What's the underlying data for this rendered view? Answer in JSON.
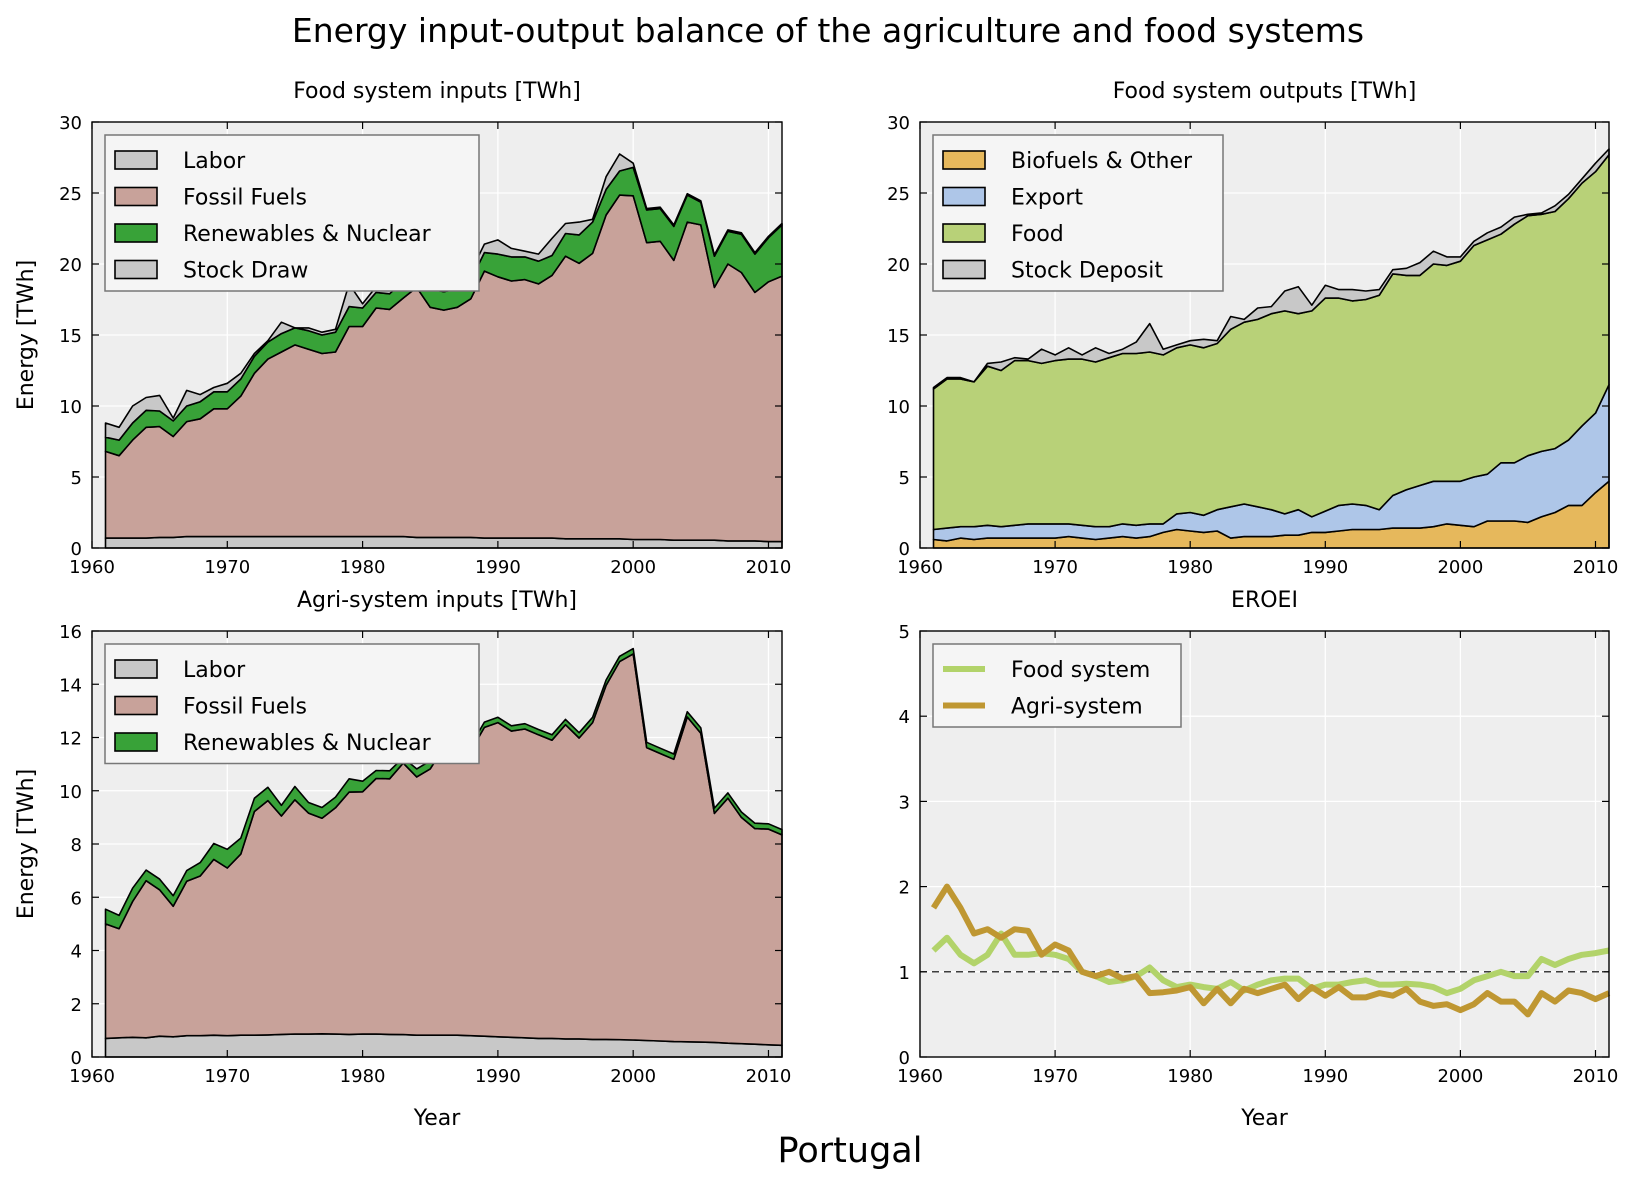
{
  "figure": {
    "title": "Energy input-output balance of the agriculture and food systems",
    "footer": "Portugal"
  },
  "chart_data": [
    {
      "id": "food_inputs",
      "type": "area",
      "stacked": true,
      "title": "Food system inputs [TWh]",
      "xlabel": "",
      "ylabel": "Energy [TWh]",
      "xlim": [
        1960,
        2011
      ],
      "ylim": [
        0,
        30
      ],
      "xticks": [
        1960,
        1970,
        1980,
        1990,
        2000,
        2010
      ],
      "yticks": [
        0,
        5,
        10,
        15,
        20,
        25,
        30
      ],
      "grid": true,
      "legend_position": "top-left",
      "x": [
        1961,
        1962,
        1963,
        1964,
        1965,
        1966,
        1967,
        1968,
        1969,
        1970,
        1971,
        1972,
        1973,
        1974,
        1975,
        1976,
        1977,
        1978,
        1979,
        1980,
        1981,
        1982,
        1983,
        1984,
        1985,
        1986,
        1987,
        1988,
        1989,
        1990,
        1991,
        1992,
        1993,
        1994,
        1995,
        1996,
        1997,
        1998,
        1999,
        2000,
        2001,
        2002,
        2003,
        2004,
        2005,
        2006,
        2007,
        2008,
        2009,
        2010,
        2011
      ],
      "series": [
        {
          "name": "Labor",
          "color": "#c8c8c8",
          "values": [
            0.7,
            0.7,
            0.7,
            0.7,
            0.75,
            0.75,
            0.8,
            0.8,
            0.8,
            0.8,
            0.8,
            0.8,
            0.8,
            0.8,
            0.8,
            0.8,
            0.8,
            0.8,
            0.8,
            0.8,
            0.8,
            0.8,
            0.8,
            0.75,
            0.75,
            0.75,
            0.75,
            0.75,
            0.7,
            0.7,
            0.7,
            0.7,
            0.7,
            0.7,
            0.65,
            0.65,
            0.65,
            0.65,
            0.65,
            0.6,
            0.6,
            0.6,
            0.55,
            0.55,
            0.55,
            0.55,
            0.5,
            0.5,
            0.5,
            0.45,
            0.45
          ]
        },
        {
          "name": "Fossil Fuels",
          "color": "#c8a29a",
          "values": [
            6.1,
            5.8,
            6.9,
            7.8,
            7.8,
            7.1,
            8.1,
            8.3,
            9.0,
            9.0,
            9.9,
            11.5,
            12.5,
            13.0,
            13.5,
            13.2,
            12.9,
            13.0,
            14.8,
            14.8,
            16.1,
            16.0,
            16.8,
            17.6,
            16.2,
            16.0,
            16.2,
            16.8,
            18.8,
            18.4,
            18.1,
            18.2,
            17.9,
            18.5,
            19.9,
            19.4,
            20.1,
            22.8,
            24.2,
            24.2,
            20.9,
            21.0,
            19.7,
            22.4,
            22.2,
            17.8,
            19.5,
            18.9,
            17.5,
            18.3,
            18.7
          ]
        },
        {
          "name": "Renewables & Nuclear",
          "color": "#38a238",
          "values": [
            1.0,
            1.1,
            1.2,
            1.2,
            1.1,
            1.1,
            1.1,
            1.2,
            1.2,
            1.2,
            1.2,
            1.2,
            1.2,
            1.3,
            1.2,
            1.3,
            1.3,
            1.4,
            1.4,
            1.3,
            1.1,
            1.1,
            1.2,
            1.6,
            1.3,
            1.3,
            1.3,
            1.3,
            1.3,
            1.6,
            1.7,
            1.6,
            1.6,
            1.4,
            1.6,
            2.0,
            2.2,
            1.8,
            1.7,
            2.0,
            2.3,
            2.3,
            2.4,
            1.9,
            1.6,
            2.2,
            2.3,
            2.7,
            2.7,
            3.1,
            3.6
          ]
        },
        {
          "name": "Stock Draw",
          "color": "#c8c8c8",
          "values": [
            1.0,
            0.9,
            1.2,
            0.9,
            1.1,
            0.2,
            1.1,
            0.5,
            0.3,
            0.6,
            0.4,
            0.2,
            0.1,
            0.8,
            0.0,
            0.2,
            0.2,
            0.2,
            1.6,
            0.3,
            0.4,
            1.0,
            0.1,
            1.4,
            0.3,
            0.3,
            0.6,
            0.6,
            0.6,
            1.0,
            0.6,
            0.4,
            0.5,
            1.2,
            0.7,
            0.9,
            0.2,
            0.9,
            1.2,
            0.3,
            0.1,
            0.1,
            0.1,
            0.1,
            0.1,
            0.1,
            0.1,
            0.1,
            0.1,
            0.1,
            0.1
          ]
        }
      ]
    },
    {
      "id": "food_outputs",
      "type": "area",
      "stacked": true,
      "title": "Food system outputs [TWh]",
      "xlabel": "",
      "ylabel": "",
      "xlim": [
        1960,
        2011
      ],
      "ylim": [
        0,
        30
      ],
      "xticks": [
        1960,
        1970,
        1980,
        1990,
        2000,
        2010
      ],
      "yticks": [
        0,
        5,
        10,
        15,
        20,
        25,
        30
      ],
      "grid": true,
      "legend_position": "top-left",
      "x": [
        1961,
        1962,
        1963,
        1964,
        1965,
        1966,
        1967,
        1968,
        1969,
        1970,
        1971,
        1972,
        1973,
        1974,
        1975,
        1976,
        1977,
        1978,
        1979,
        1980,
        1981,
        1982,
        1983,
        1984,
        1985,
        1986,
        1987,
        1988,
        1989,
        1990,
        1991,
        1992,
        1993,
        1994,
        1995,
        1996,
        1997,
        1998,
        1999,
        2000,
        2001,
        2002,
        2003,
        2004,
        2005,
        2006,
        2007,
        2008,
        2009,
        2010,
        2011
      ],
      "series": [
        {
          "name": "Biofuels & Other",
          "color": "#e6b85c",
          "values": [
            0.6,
            0.5,
            0.7,
            0.6,
            0.7,
            0.7,
            0.7,
            0.7,
            0.7,
            0.7,
            0.8,
            0.7,
            0.6,
            0.7,
            0.8,
            0.7,
            0.8,
            1.1,
            1.3,
            1.2,
            1.1,
            1.2,
            0.7,
            0.8,
            0.8,
            0.8,
            0.9,
            0.9,
            1.1,
            1.1,
            1.2,
            1.3,
            1.3,
            1.3,
            1.4,
            1.4,
            1.4,
            1.5,
            1.7,
            1.6,
            1.5,
            1.9,
            1.9,
            1.9,
            1.8,
            2.2,
            2.5,
            3.0,
            3.0,
            3.9,
            4.7
          ]
        },
        {
          "name": "Export",
          "color": "#aec6e8",
          "values": [
            0.7,
            0.9,
            0.8,
            0.9,
            0.9,
            0.8,
            0.9,
            1.0,
            1.0,
            1.0,
            0.9,
            0.9,
            0.9,
            0.8,
            0.9,
            0.9,
            0.9,
            0.6,
            1.1,
            1.3,
            1.2,
            1.5,
            2.2,
            2.3,
            2.1,
            1.9,
            1.5,
            1.8,
            1.1,
            1.5,
            1.8,
            1.8,
            1.7,
            1.4,
            2.3,
            2.7,
            3.0,
            3.2,
            3.0,
            3.1,
            3.5,
            3.3,
            4.1,
            4.1,
            4.7,
            4.6,
            4.5,
            4.6,
            5.6,
            5.6,
            6.8
          ]
        },
        {
          "name": "Food",
          "color": "#b8d178",
          "values": [
            9.9,
            10.5,
            10.4,
            10.2,
            11.2,
            11.0,
            11.6,
            11.5,
            11.3,
            11.5,
            11.6,
            11.7,
            11.6,
            11.9,
            12.0,
            12.1,
            12.1,
            11.9,
            11.7,
            11.8,
            11.8,
            11.7,
            12.5,
            12.8,
            13.2,
            13.8,
            14.3,
            13.8,
            14.5,
            15.0,
            14.6,
            14.3,
            14.5,
            15.1,
            15.6,
            15.1,
            14.8,
            15.3,
            15.2,
            15.5,
            16.3,
            16.5,
            16.1,
            16.8,
            16.9,
            16.7,
            16.7,
            17.0,
            17.1,
            17.0,
            16.2
          ]
        },
        {
          "name": "Stock Deposit",
          "color": "#c8c8c8",
          "values": [
            0.1,
            0.1,
            0.1,
            0.0,
            0.2,
            0.6,
            0.2,
            0.1,
            1.0,
            0.4,
            0.8,
            0.3,
            1.0,
            0.3,
            0.3,
            0.8,
            2.0,
            0.4,
            0.2,
            0.3,
            0.6,
            0.2,
            0.9,
            0.2,
            0.8,
            0.5,
            1.4,
            1.9,
            0.4,
            0.9,
            0.6,
            0.8,
            0.6,
            0.4,
            0.3,
            0.5,
            0.9,
            0.9,
            0.6,
            0.3,
            0.3,
            0.5,
            0.5,
            0.5,
            0.1,
            0.1,
            0.4,
            0.3,
            0.3,
            0.6,
            0.4
          ]
        }
      ]
    },
    {
      "id": "agri_inputs",
      "type": "area",
      "stacked": true,
      "title": "Agri-system inputs [TWh]",
      "xlabel": "Year",
      "ylabel": "Energy [TWh]",
      "xlim": [
        1960,
        2011
      ],
      "ylim": [
        0,
        16
      ],
      "xticks": [
        1960,
        1970,
        1980,
        1990,
        2000,
        2010
      ],
      "yticks": [
        0,
        2,
        4,
        6,
        8,
        10,
        12,
        14,
        16
      ],
      "grid": true,
      "legend_position": "top-left",
      "x": [
        1961,
        1962,
        1963,
        1964,
        1965,
        1966,
        1967,
        1968,
        1969,
        1970,
        1971,
        1972,
        1973,
        1974,
        1975,
        1976,
        1977,
        1978,
        1979,
        1980,
        1981,
        1982,
        1983,
        1984,
        1985,
        1986,
        1987,
        1988,
        1989,
        1990,
        1991,
        1992,
        1993,
        1994,
        1995,
        1996,
        1997,
        1998,
        1999,
        2000,
        2001,
        2002,
        2003,
        2004,
        2005,
        2006,
        2007,
        2008,
        2009,
        2010,
        2011
      ],
      "series": [
        {
          "name": "Labor",
          "color": "#c8c8c8",
          "values": [
            0.7,
            0.72,
            0.74,
            0.72,
            0.78,
            0.76,
            0.8,
            0.8,
            0.82,
            0.8,
            0.82,
            0.82,
            0.83,
            0.85,
            0.86,
            0.86,
            0.87,
            0.86,
            0.85,
            0.86,
            0.86,
            0.85,
            0.84,
            0.82,
            0.82,
            0.82,
            0.82,
            0.8,
            0.78,
            0.76,
            0.74,
            0.72,
            0.7,
            0.7,
            0.68,
            0.68,
            0.66,
            0.66,
            0.65,
            0.64,
            0.62,
            0.6,
            0.58,
            0.57,
            0.56,
            0.55,
            0.52,
            0.5,
            0.48,
            0.46,
            0.44
          ]
        },
        {
          "name": "Fossil Fuels",
          "color": "#c8a29a",
          "values": [
            4.3,
            4.1,
            5.1,
            5.9,
            5.5,
            4.9,
            5.8,
            6.0,
            6.6,
            6.3,
            6.8,
            8.4,
            8.8,
            8.2,
            8.8,
            8.3,
            8.1,
            8.5,
            9.1,
            9.1,
            9.6,
            9.6,
            10.2,
            9.7,
            10.0,
            10.8,
            10.6,
            10.7,
            11.6,
            11.8,
            11.5,
            11.6,
            11.4,
            11.2,
            11.8,
            11.3,
            11.9,
            13.3,
            14.2,
            14.5,
            11.0,
            10.8,
            10.6,
            12.2,
            11.6,
            8.6,
            9.2,
            8.5,
            8.1,
            8.1,
            7.9
          ]
        },
        {
          "name": "Renewables & Nuclear",
          "color": "#38a238",
          "values": [
            0.55,
            0.5,
            0.5,
            0.4,
            0.4,
            0.4,
            0.4,
            0.5,
            0.6,
            0.7,
            0.6,
            0.5,
            0.5,
            0.4,
            0.5,
            0.4,
            0.4,
            0.4,
            0.5,
            0.4,
            0.3,
            0.3,
            0.2,
            0.3,
            0.3,
            0.2,
            0.2,
            0.2,
            0.2,
            0.2,
            0.2,
            0.2,
            0.2,
            0.2,
            0.2,
            0.2,
            0.2,
            0.2,
            0.2,
            0.2,
            0.2,
            0.2,
            0.2,
            0.2,
            0.2,
            0.2,
            0.2,
            0.2,
            0.2,
            0.2,
            0.2
          ]
        }
      ]
    },
    {
      "id": "eroei",
      "type": "line",
      "title": "EROEI",
      "xlabel": "Year",
      "ylabel": "",
      "xlim": [
        1960,
        2011
      ],
      "ylim": [
        0,
        5
      ],
      "xticks": [
        1960,
        1970,
        1980,
        1990,
        2000,
        2010
      ],
      "yticks": [
        0,
        1,
        2,
        3,
        4,
        5
      ],
      "grid": true,
      "reference_line": 1,
      "legend_position": "top-left",
      "x": [
        1961,
        1962,
        1963,
        1964,
        1965,
        1966,
        1967,
        1968,
        1969,
        1970,
        1971,
        1972,
        1973,
        1974,
        1975,
        1976,
        1977,
        1978,
        1979,
        1980,
        1981,
        1982,
        1983,
        1984,
        1985,
        1986,
        1987,
        1988,
        1989,
        1990,
        1991,
        1992,
        1993,
        1994,
        1995,
        1996,
        1997,
        1998,
        1999,
        2000,
        2001,
        2002,
        2003,
        2004,
        2005,
        2006,
        2007,
        2008,
        2009,
        2010,
        2011
      ],
      "series": [
        {
          "name": "Food system",
          "color": "#b2d36a",
          "values": [
            1.25,
            1.4,
            1.2,
            1.1,
            1.2,
            1.45,
            1.2,
            1.2,
            1.22,
            1.2,
            1.15,
            1.0,
            0.95,
            0.88,
            0.9,
            0.95,
            1.05,
            0.9,
            0.82,
            0.85,
            0.82,
            0.8,
            0.88,
            0.78,
            0.85,
            0.9,
            0.92,
            0.92,
            0.8,
            0.85,
            0.85,
            0.88,
            0.9,
            0.85,
            0.85,
            0.86,
            0.85,
            0.82,
            0.75,
            0.8,
            0.9,
            0.95,
            1.0,
            0.95,
            0.95,
            1.15,
            1.08,
            1.15,
            1.2,
            1.22,
            1.25
          ]
        },
        {
          "name": "Agri-system",
          "color": "#bf9732",
          "values": [
            1.75,
            2.0,
            1.75,
            1.45,
            1.5,
            1.4,
            1.5,
            1.48,
            1.2,
            1.32,
            1.25,
            1.0,
            0.95,
            1.0,
            0.92,
            0.95,
            0.75,
            0.76,
            0.78,
            0.82,
            0.63,
            0.8,
            0.63,
            0.8,
            0.75,
            0.8,
            0.85,
            0.68,
            0.82,
            0.72,
            0.82,
            0.7,
            0.7,
            0.75,
            0.72,
            0.8,
            0.65,
            0.6,
            0.62,
            0.55,
            0.62,
            0.75,
            0.65,
            0.65,
            0.5,
            0.75,
            0.65,
            0.78,
            0.75,
            0.68,
            0.75
          ]
        }
      ]
    }
  ]
}
